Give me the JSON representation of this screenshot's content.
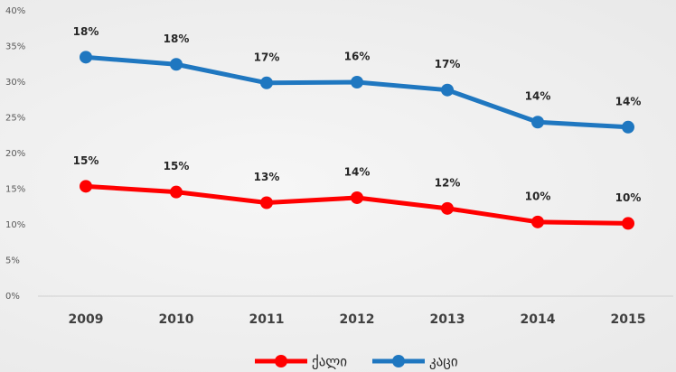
{
  "chart_data": {
    "type": "stacked_line",
    "categories": [
      "2009",
      "2010",
      "2011",
      "2012",
      "2013",
      "2014",
      "2015"
    ],
    "series": [
      {
        "name": "ქალი",
        "color": "#ff0000",
        "values": [
          15.4,
          14.6,
          13.1,
          13.8,
          12.3,
          10.4,
          10.2
        ],
        "value_labels": [
          "15%",
          "15%",
          "13%",
          "14%",
          "12%",
          "10%",
          "10%"
        ]
      },
      {
        "name": "კაცი",
        "color": "#1f77c0",
        "values": [
          18.1,
          17.9,
          16.8,
          16.2,
          16.6,
          14.0,
          13.5
        ],
        "value_labels": [
          "18%",
          "18%",
          "17%",
          "16%",
          "17%",
          "14%",
          "14%"
        ]
      }
    ],
    "ylim": [
      0,
      40
    ],
    "yticks": [
      {
        "value": 0,
        "label": "0%"
      },
      {
        "value": 5,
        "label": "5%"
      },
      {
        "value": 10,
        "label": "10%"
      },
      {
        "value": 15,
        "label": "15%"
      },
      {
        "value": 20,
        "label": "20%"
      },
      {
        "value": 25,
        "label": "25%"
      },
      {
        "value": 30,
        "label": "30%"
      },
      {
        "value": 35,
        "label": "35%"
      },
      {
        "value": 40,
        "label": "40%"
      }
    ],
    "grid": false,
    "legend": "bottom"
  }
}
